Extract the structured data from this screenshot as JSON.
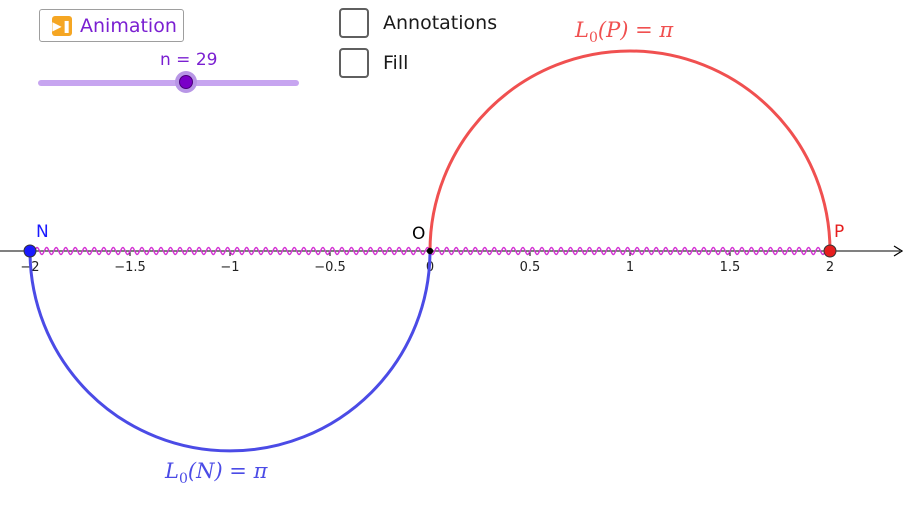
{
  "controls": {
    "animation_button": {
      "label": "Animation",
      "icon": "play-pause-icon"
    },
    "slider": {
      "label": "n = 29",
      "min": 1,
      "max": 50,
      "value": 29
    },
    "checkboxes": [
      {
        "label": "Annotations",
        "checked": false
      },
      {
        "label": "Fill",
        "checked": false
      }
    ]
  },
  "graph": {
    "x_ticks": [
      {
        "value": -2,
        "label": "−2"
      },
      {
        "value": -1.5,
        "label": "−1.5"
      },
      {
        "value": -1,
        "label": "−1"
      },
      {
        "value": -0.5,
        "label": "−0.5"
      },
      {
        "value": 0,
        "label": "0"
      },
      {
        "value": 0.5,
        "label": "0.5"
      },
      {
        "value": 1,
        "label": "1"
      },
      {
        "value": 1.5,
        "label": "1.5"
      },
      {
        "value": 2,
        "label": "2"
      }
    ],
    "points": [
      {
        "name": "N",
        "x": -2,
        "y": 0,
        "color": "#1a1aff"
      },
      {
        "name": "O",
        "x": 0,
        "y": 0,
        "color": "#000000"
      },
      {
        "name": "P",
        "x": 2,
        "y": 0,
        "color": "#e61e1e"
      }
    ],
    "upper_arc": {
      "center_x": 1,
      "radius": 1,
      "color": "#f05050",
      "label_main": "L",
      "label_sub": "0",
      "label_arg": "(P) = π"
    },
    "lower_arc": {
      "center_x": -1,
      "radius": 1,
      "color": "#4b4be6",
      "label_main": "L",
      "label_sub": "0",
      "label_arg": "(N) = π"
    },
    "wave": {
      "x_start": -2,
      "x_end": 2,
      "color": "#d433d4"
    },
    "colors": {
      "axis": "#000000",
      "accent": "#7a1fd1"
    }
  }
}
